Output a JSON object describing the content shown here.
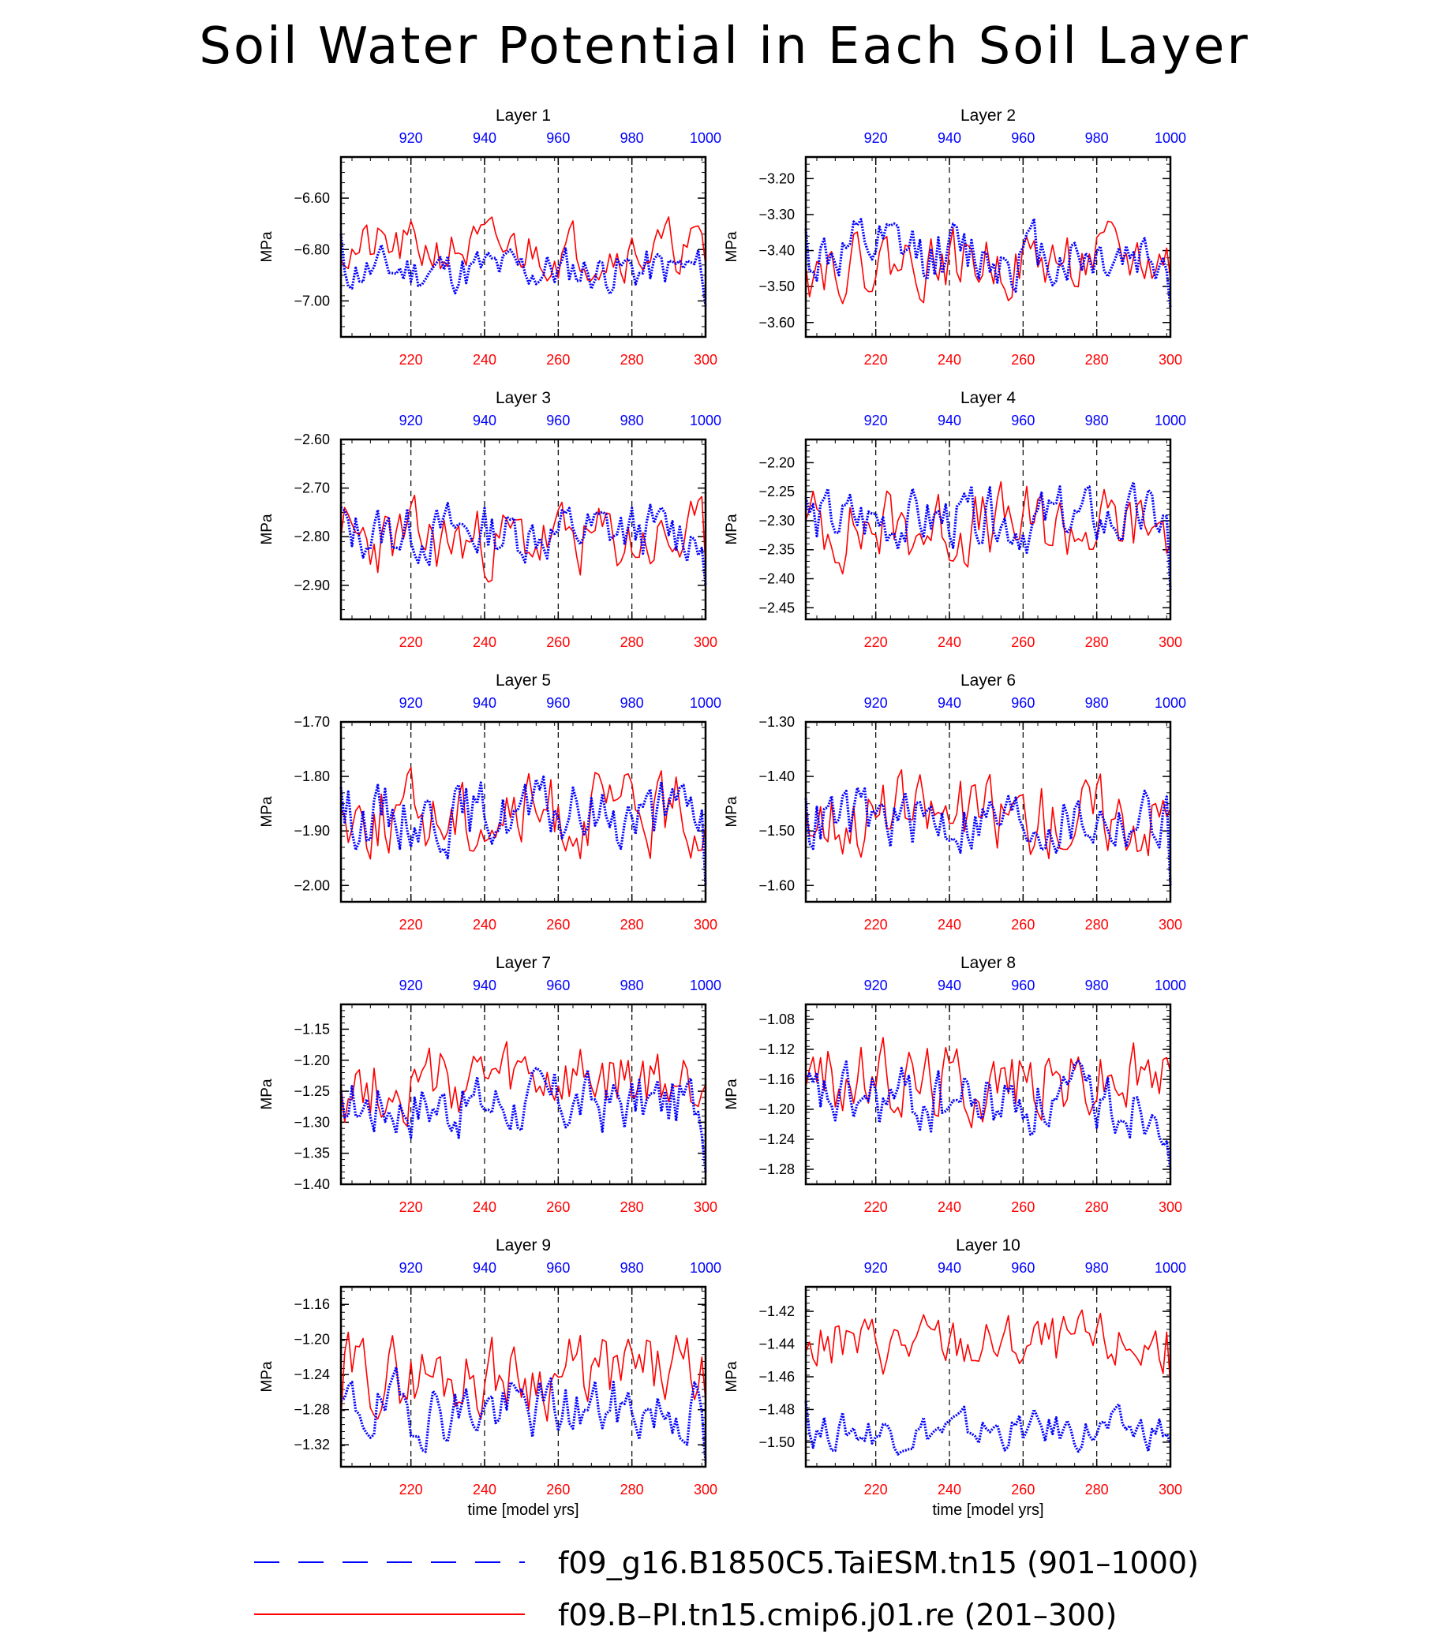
{
  "title": "Soil Water Potential in Each Soil Layer",
  "x_label": "time [model yrs]",
  "colors": {
    "blue": "#0000ff",
    "red": "#ff0000",
    "axis": "#000000"
  },
  "legend": [
    {
      "label": "f09_g16.B1850C5.TaiESM.tn15 (901–1000)",
      "color": "#0000ff",
      "style": "dashed"
    },
    {
      "label": "f09.B–PI.tn15.cmip6.j01.re (201–300)",
      "color": "#ff0000",
      "style": "solid"
    }
  ],
  "chart_data": [
    {
      "type": "line",
      "title": "Layer 1",
      "ylabel": "MPa",
      "ylim": [
        -7.14,
        -6.44
      ],
      "yticks": [
        "-6.60",
        "-6.80",
        "-7.00"
      ],
      "ytick_values": [
        -6.6,
        -6.8,
        -7.0
      ],
      "x_bottom": {
        "range": [
          201,
          300
        ],
        "ticks": [
          "220",
          "240",
          "260",
          "280",
          "300"
        ]
      },
      "x_top": {
        "range": [
          901,
          1000
        ],
        "ticks": [
          "920",
          "940",
          "960",
          "980",
          "1000"
        ]
      },
      "series": [
        {
          "name": "f09_g16.B1850C5.TaiESM.tn15 (901–1000)",
          "mean": -6.88,
          "amp": 0.06,
          "seed": 11,
          "start": -6.74,
          "end": -7.02
        },
        {
          "name": "f09.B–PI.tn15.cmip6.j01.re (201–300)",
          "mean": -6.8,
          "amp": 0.07,
          "seed": 21,
          "start": -6.84,
          "end": -6.86
        }
      ]
    },
    {
      "type": "line",
      "title": "Layer 2",
      "ylabel": "MPa",
      "ylim": [
        -3.64,
        -3.14
      ],
      "yticks": [
        "-3.20",
        "-3.30",
        "-3.40",
        "-3.50",
        "-3.60"
      ],
      "ytick_values": [
        -3.2,
        -3.3,
        -3.4,
        -3.5,
        -3.6
      ],
      "x_bottom": {
        "range": [
          201,
          300
        ],
        "ticks": [
          "220",
          "240",
          "260",
          "280",
          "300"
        ]
      },
      "x_top": {
        "range": [
          901,
          1000
        ],
        "ticks": [
          "920",
          "940",
          "960",
          "980",
          "1000"
        ]
      },
      "series": [
        {
          "name": "f09_g16.B1850C5.TaiESM.tn15 (901–1000)",
          "mean": -3.41,
          "amp": 0.06,
          "seed": 12,
          "start": -3.34,
          "end": -3.56
        },
        {
          "name": "f09.B–PI.tn15.cmip6.j01.re (201–300)",
          "mean": -3.43,
          "amp": 0.06,
          "seed": 22,
          "start": -3.44,
          "end": -3.48
        }
      ]
    },
    {
      "type": "line",
      "title": "Layer 3",
      "ylabel": "MPa",
      "ylim": [
        -2.97,
        -2.6
      ],
      "yticks": [
        "-2.60",
        "-2.70",
        "-2.80",
        "-2.90"
      ],
      "ytick_values": [
        -2.6,
        -2.7,
        -2.8,
        -2.9
      ],
      "x_bottom": {
        "range": [
          201,
          300
        ],
        "ticks": [
          "220",
          "240",
          "260",
          "280",
          "300"
        ]
      },
      "x_top": {
        "range": [
          901,
          1000
        ],
        "ticks": [
          "920",
          "940",
          "960",
          "980",
          "1000"
        ]
      },
      "series": [
        {
          "name": "f09_g16.B1850C5.TaiESM.tn15 (901–1000)",
          "mean": -2.79,
          "amp": 0.04,
          "seed": 13,
          "start": -2.74,
          "end": -2.9
        },
        {
          "name": "f09.B–PI.tn15.cmip6.j01.re (201–300)",
          "mean": -2.81,
          "amp": 0.05,
          "seed": 23,
          "start": -2.8,
          "end": -2.86
        }
      ]
    },
    {
      "type": "line",
      "title": "Layer 4",
      "ylabel": "MPa",
      "ylim": [
        -2.47,
        -2.16
      ],
      "yticks": [
        "-2.20",
        "-2.25",
        "-2.30",
        "-2.35",
        "-2.40",
        "-2.45"
      ],
      "ytick_values": [
        -2.2,
        -2.25,
        -2.3,
        -2.35,
        -2.4,
        -2.45
      ],
      "x_bottom": {
        "range": [
          201,
          300
        ],
        "ticks": [
          "220",
          "240",
          "260",
          "280",
          "300"
        ]
      },
      "x_top": {
        "range": [
          901,
          1000
        ],
        "ticks": [
          "920",
          "940",
          "960",
          "980",
          "1000"
        ]
      },
      "series": [
        {
          "name": "f09_g16.B1850C5.TaiESM.tn15 (901–1000)",
          "mean": -2.3,
          "amp": 0.035,
          "seed": 14,
          "start": -2.26,
          "end": -2.42
        },
        {
          "name": "f09.B–PI.tn15.cmip6.j01.re (201–300)",
          "mean": -2.31,
          "amp": 0.045,
          "seed": 24,
          "start": -2.3,
          "end": -2.34
        }
      ]
    },
    {
      "type": "line",
      "title": "Layer 5",
      "ylabel": "MPa",
      "ylim": [
        -2.03,
        -1.7
      ],
      "yticks": [
        "-1.70",
        "-1.80",
        "-1.90",
        "-2.00"
      ],
      "ytick_values": [
        -1.7,
        -1.8,
        -1.9,
        -2.0
      ],
      "x_bottom": {
        "range": [
          201,
          300
        ],
        "ticks": [
          "220",
          "240",
          "260",
          "280",
          "300"
        ]
      },
      "x_top": {
        "range": [
          901,
          1000
        ],
        "ticks": [
          "920",
          "940",
          "960",
          "980",
          "1000"
        ]
      },
      "series": [
        {
          "name": "f09_g16.B1850C5.TaiESM.tn15 (901–1000)",
          "mean": -1.87,
          "amp": 0.04,
          "seed": 15,
          "start": -1.82,
          "end": -2.0
        },
        {
          "name": "f09.B–PI.tn15.cmip6.j01.re (201–300)",
          "mean": -1.87,
          "amp": 0.05,
          "seed": 25,
          "start": -1.86,
          "end": -1.89
        }
      ]
    },
    {
      "type": "line",
      "title": "Layer 6",
      "ylabel": "MPa",
      "ylim": [
        -1.63,
        -1.3
      ],
      "yticks": [
        "-1.30",
        "-1.40",
        "-1.50",
        "-1.60"
      ],
      "ytick_values": [
        -1.3,
        -1.4,
        -1.5,
        -1.6
      ],
      "x_bottom": {
        "range": [
          201,
          300
        ],
        "ticks": [
          "220",
          "240",
          "260",
          "280",
          "300"
        ]
      },
      "x_top": {
        "range": [
          901,
          1000
        ],
        "ticks": [
          "920",
          "940",
          "960",
          "980",
          "1000"
        ]
      },
      "series": [
        {
          "name": "f09_g16.B1850C5.TaiESM.tn15 (901–1000)",
          "mean": -1.48,
          "amp": 0.04,
          "seed": 16,
          "start": -1.44,
          "end": -1.6
        },
        {
          "name": "f09.B–PI.tn15.cmip6.j01.re (201–300)",
          "mean": -1.47,
          "amp": 0.05,
          "seed": 26,
          "start": -1.46,
          "end": -1.46
        }
      ]
    },
    {
      "type": "line",
      "title": "Layer 7",
      "ylabel": "MPa",
      "ylim": [
        -1.4,
        -1.11
      ],
      "yticks": [
        "-1.15",
        "-1.20",
        "-1.25",
        "-1.30",
        "-1.35",
        "-1.40"
      ],
      "ytick_values": [
        -1.15,
        -1.2,
        -1.25,
        -1.3,
        -1.35,
        -1.4
      ],
      "x_bottom": {
        "range": [
          201,
          300
        ],
        "ticks": [
          "220",
          "240",
          "260",
          "280",
          "300"
        ]
      },
      "x_top": {
        "range": [
          901,
          1000
        ],
        "ticks": [
          "920",
          "940",
          "960",
          "980",
          "1000"
        ]
      },
      "series": [
        {
          "name": "f09_g16.B1850C5.TaiESM.tn15 (901–1000)",
          "mean": -1.27,
          "amp": 0.035,
          "seed": 17,
          "start": -1.25,
          "end": -1.38
        },
        {
          "name": "f09.B–PI.tn15.cmip6.j01.re (201–300)",
          "mean": -1.24,
          "amp": 0.04,
          "seed": 27,
          "start": -1.24,
          "end": -1.24
        }
      ]
    },
    {
      "type": "line",
      "title": "Layer 8",
      "ylabel": "MPa",
      "ylim": [
        -1.3,
        -1.06
      ],
      "yticks": [
        "-1.08",
        "-1.12",
        "-1.16",
        "-1.20",
        "-1.24",
        "-1.28"
      ],
      "ytick_values": [
        -1.08,
        -1.12,
        -1.16,
        -1.2,
        -1.24,
        -1.28
      ],
      "x_bottom": {
        "range": [
          201,
          300
        ],
        "ticks": [
          "220",
          "240",
          "260",
          "280",
          "300"
        ]
      },
      "x_top": {
        "range": [
          901,
          1000
        ],
        "ticks": [
          "920",
          "940",
          "960",
          "980",
          "1000"
        ]
      },
      "series": [
        {
          "name": "f09_g16.B1850C5.TaiESM.tn15 (901–1000)",
          "mean": -1.19,
          "amp": 0.03,
          "seed": 18,
          "start": -1.16,
          "end": -1.28
        },
        {
          "name": "f09.B–PI.tn15.cmip6.j01.re (201–300)",
          "mean": -1.16,
          "amp": 0.035,
          "seed": 28,
          "start": -1.17,
          "end": -1.15
        }
      ]
    },
    {
      "type": "line",
      "title": "Layer 9",
      "ylabel": "MPa",
      "ylim": [
        -1.345,
        -1.14
      ],
      "yticks": [
        "-1.16",
        "-1.20",
        "-1.24",
        "-1.28",
        "-1.32"
      ],
      "ytick_values": [
        -1.16,
        -1.2,
        -1.24,
        -1.28,
        -1.32
      ],
      "x_bottom": {
        "range": [
          201,
          300
        ],
        "ticks": [
          "220",
          "240",
          "260",
          "280",
          "300"
        ]
      },
      "x_top": {
        "range": [
          901,
          1000
        ],
        "ticks": [
          "920",
          "940",
          "960",
          "980",
          "1000"
        ]
      },
      "series": [
        {
          "name": "f09_g16.B1850C5.TaiESM.tn15 (901–1000)",
          "mean": -1.28,
          "amp": 0.025,
          "seed": 19,
          "start": -1.27,
          "end": -1.34
        },
        {
          "name": "f09.B–PI.tn15.cmip6.j01.re (201–300)",
          "mean": -1.24,
          "amp": 0.03,
          "seed": 29,
          "start": -1.29,
          "end": -1.27
        }
      ]
    },
    {
      "type": "line",
      "title": "Layer 10",
      "ylabel": "MPa",
      "ylim": [
        -1.515,
        -1.405
      ],
      "yticks": [
        "-1.42",
        "-1.44",
        "-1.46",
        "-1.48",
        "-1.50"
      ],
      "ytick_values": [
        -1.42,
        -1.44,
        -1.46,
        -1.48,
        -1.5
      ],
      "x_bottom": {
        "range": [
          201,
          300
        ],
        "ticks": [
          "220",
          "240",
          "260",
          "280",
          "300"
        ]
      },
      "x_top": {
        "range": [
          901,
          1000
        ],
        "ticks": [
          "920",
          "940",
          "960",
          "980",
          "1000"
        ]
      },
      "series": [
        {
          "name": "f09_g16.B1850C5.TaiESM.tn15 (901–1000)",
          "mean": -1.493,
          "amp": 0.008,
          "seed": 20,
          "start": -1.475,
          "end": -1.5
        },
        {
          "name": "f09.B–PI.tn15.cmip6.j01.re (201–300)",
          "mean": -1.44,
          "amp": 0.012,
          "seed": 30,
          "start": -1.445,
          "end": -1.465
        }
      ]
    }
  ]
}
